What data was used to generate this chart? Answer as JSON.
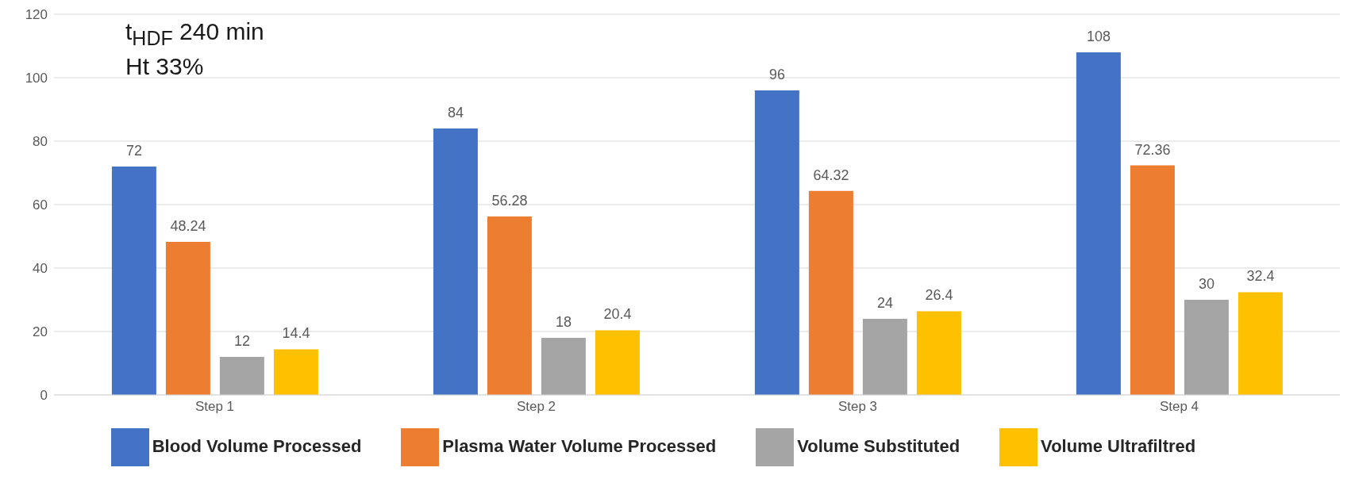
{
  "chart_data": {
    "type": "bar",
    "categories": [
      "Step 1",
      "Step 2",
      "Step 3",
      "Step 4"
    ],
    "series": [
      {
        "name": "Blood Volume Processed",
        "color": "#4472c4",
        "values": [
          72,
          84,
          96,
          108
        ]
      },
      {
        "name": "Plasma Water Volume Processed",
        "color": "#ed7d31",
        "values": [
          48.24,
          56.28,
          64.32,
          72.36
        ]
      },
      {
        "name": "Volume Substituted",
        "color": "#a5a5a5",
        "values": [
          12,
          18,
          24,
          30
        ]
      },
      {
        "name": "Volume Ultrafiltred",
        "color": "#ffc000",
        "values": [
          14.4,
          20.4,
          26.4,
          32.4
        ]
      }
    ],
    "ylim": [
      0,
      120
    ],
    "yticks": [
      0,
      20,
      40,
      60,
      80,
      100,
      120
    ],
    "grid": "y",
    "legend": "bottom",
    "data_labels": true,
    "annotations": [
      "t$_{HDF}$ 240 min",
      "Ht 33%"
    ]
  }
}
